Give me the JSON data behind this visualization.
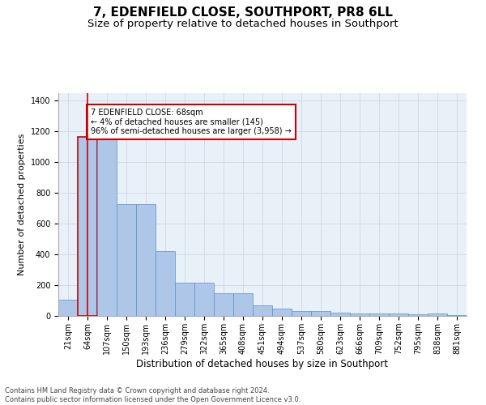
{
  "title": "7, EDENFIELD CLOSE, SOUTHPORT, PR8 6LL",
  "subtitle": "Size of property relative to detached houses in Southport",
  "xlabel": "Distribution of detached houses by size in Southport",
  "ylabel": "Number of detached properties",
  "categories": [
    "21sqm",
    "64sqm",
    "107sqm",
    "150sqm",
    "193sqm",
    "236sqm",
    "279sqm",
    "322sqm",
    "365sqm",
    "408sqm",
    "451sqm",
    "494sqm",
    "537sqm",
    "580sqm",
    "623sqm",
    "666sqm",
    "709sqm",
    "752sqm",
    "795sqm",
    "838sqm",
    "881sqm"
  ],
  "values": [
    105,
    1165,
    1165,
    730,
    730,
    420,
    215,
    215,
    150,
    150,
    70,
    50,
    30,
    30,
    20,
    15,
    15,
    15,
    10,
    15,
    5
  ],
  "bar_color": "#aec6e8",
  "bar_edge_color": "#5b8fc9",
  "highlight_bar_edge_color": "#cc0000",
  "vline_color": "#cc0000",
  "annotation_text": "7 EDENFIELD CLOSE: 68sqm\n← 4% of detached houses are smaller (145)\n96% of semi-detached houses are larger (3,958) →",
  "annotation_box_color": "#ffffff",
  "annotation_box_edge_color": "#cc0000",
  "ylim": [
    0,
    1450
  ],
  "yticks": [
    0,
    200,
    400,
    600,
    800,
    1000,
    1200,
    1400
  ],
  "footer": "Contains HM Land Registry data © Crown copyright and database right 2024.\nContains public sector information licensed under the Open Government Licence v3.0.",
  "bg_color": "#ffffff",
  "plot_bg_color": "#e8f0f8",
  "grid_color": "#d0d8e8",
  "title_fontsize": 11,
  "subtitle_fontsize": 9.5,
  "xlabel_fontsize": 8.5,
  "ylabel_fontsize": 8,
  "tick_fontsize": 7,
  "footer_fontsize": 6,
  "annotation_fontsize": 7
}
